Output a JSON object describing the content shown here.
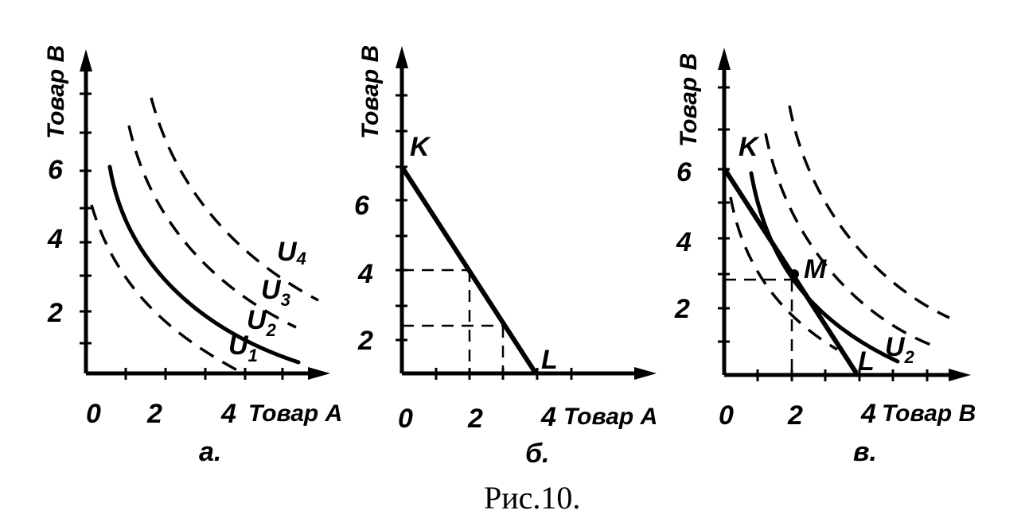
{
  "figure_caption": "Рис.10.",
  "panels": [
    {
      "id": "a",
      "caption": "а.",
      "y_axis_label": "Товар В",
      "x_axis_label": "Товар А",
      "y_ticks": [
        "6",
        "4",
        "2"
      ],
      "x_ticks": [
        "0",
        "2",
        "4"
      ],
      "curves": [
        {
          "label": "U",
          "sub": "1",
          "style": "dashed"
        },
        {
          "label": "U",
          "sub": "2",
          "style": "solid"
        },
        {
          "label": "U",
          "sub": "3",
          "style": "dashed"
        },
        {
          "label": "U",
          "sub": "4",
          "style": "dashed"
        }
      ]
    },
    {
      "id": "b",
      "caption": "б.",
      "y_axis_label": "Товар В",
      "x_axis_label": "Товар А",
      "y_ticks": [
        "6",
        "4",
        "2"
      ],
      "x_ticks": [
        "0",
        "2",
        "4"
      ],
      "points": {
        "K": "K",
        "L": "L"
      }
    },
    {
      "id": "c",
      "caption": "в.",
      "y_axis_label": "Товар В",
      "x_axis_label": "Товар В",
      "y_ticks": [
        "6",
        "4",
        "2"
      ],
      "x_ticks": [
        "0",
        "2",
        "4"
      ],
      "points": {
        "K": "K",
        "M": "M",
        "L": "L"
      },
      "curve_label": {
        "label": "U",
        "sub": "2"
      }
    }
  ]
}
